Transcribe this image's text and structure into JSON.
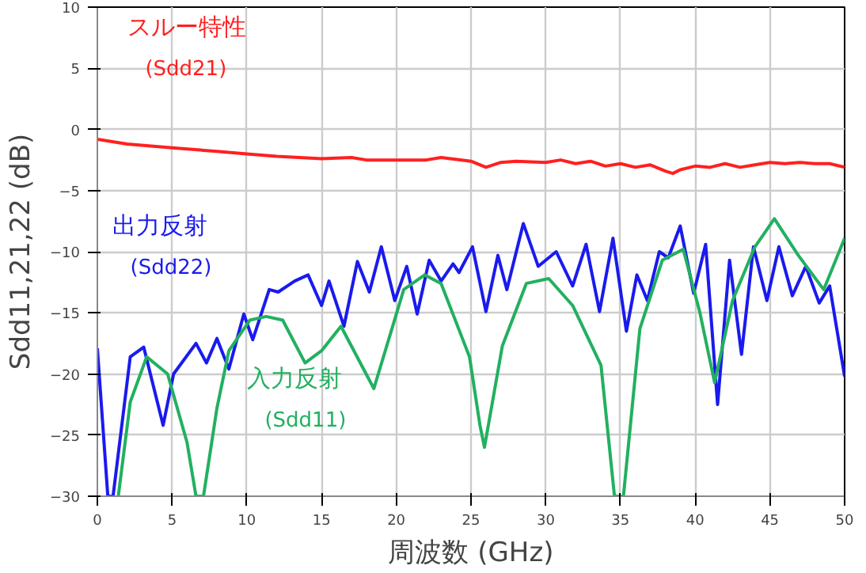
{
  "chart_data": {
    "type": "line",
    "xlabel": "周波数 (GHz)",
    "ylabel": "Sdd11,21,22 (dB)",
    "xlim": [
      0,
      50
    ],
    "ylim": [
      -30,
      10
    ],
    "xticks": [
      0,
      5,
      10,
      15,
      20,
      25,
      30,
      35,
      40,
      45,
      50
    ],
    "yticks": [
      -30,
      -25,
      -20,
      -15,
      -10,
      -5,
      0,
      5,
      10
    ],
    "grid": true,
    "legend": false,
    "marker": "none",
    "line_style": "solid",
    "series": [
      {
        "name": "スルー特性\n(Sdd21)",
        "color": "#ff2020",
        "x": [
          0,
          2,
          5,
          8,
          10,
          12,
          15,
          17,
          18,
          20,
          22,
          23,
          25,
          26,
          27,
          28,
          30,
          31,
          32,
          33,
          34,
          35,
          36,
          37,
          38,
          38.5,
          39,
          40,
          41,
          42,
          43,
          44,
          45,
          46,
          47,
          48,
          49,
          50
        ],
        "values": [
          -0.8,
          -1.2,
          -1.5,
          -1.8,
          -2.0,
          -2.2,
          -2.4,
          -2.3,
          -2.5,
          -2.5,
          -2.5,
          -2.3,
          -2.6,
          -3.1,
          -2.7,
          -2.6,
          -2.7,
          -2.5,
          -2.8,
          -2.6,
          -3.0,
          -2.8,
          -3.1,
          -2.9,
          -3.4,
          -3.6,
          -3.3,
          -3.0,
          -3.1,
          -2.8,
          -3.1,
          -2.9,
          -2.7,
          -2.8,
          -2.7,
          -2.8,
          -2.8,
          -3.1
        ]
      },
      {
        "name": "出力反射\n(Sdd22)",
        "color": "#1a1aee",
        "x": [
          0,
          0.7,
          1.05,
          2.2,
          3.1,
          4.4,
          5.1,
          6.6,
          7.3,
          8.0,
          8.8,
          9.8,
          10.4,
          11.5,
          12.1,
          13.2,
          14.1,
          15.0,
          15.5,
          16.5,
          17.4,
          18.2,
          19.0,
          19.9,
          20.7,
          21.4,
          22.2,
          23.0,
          23.8,
          24.2,
          25.1,
          26.0,
          26.8,
          27.4,
          28.5,
          29.5,
          30.7,
          31.8,
          32.7,
          33.6,
          34.5,
          35.4,
          36.1,
          36.8,
          37.6,
          38.2,
          39.0,
          39.9,
          40.7,
          41.5,
          42.3,
          43.1,
          43.9,
          44.8,
          45.6,
          46.5,
          47.4,
          48.3,
          49.0,
          50.0
        ],
        "values": [
          -17.9,
          -30,
          -30,
          -18.6,
          -17.8,
          -24.2,
          -20,
          -17.5,
          -19.1,
          -17.1,
          -19.6,
          -15.1,
          -17.2,
          -13.1,
          -13.3,
          -12.4,
          -11.9,
          -14.4,
          -12.4,
          -16.1,
          -10.8,
          -13.3,
          -9.6,
          -14.0,
          -11.2,
          -15.1,
          -10.7,
          -12.4,
          -11.0,
          -11.7,
          -9.6,
          -14.9,
          -10.3,
          -13.1,
          -7.7,
          -11.2,
          -10.0,
          -12.8,
          -9.4,
          -14.9,
          -8.9,
          -16.5,
          -11.9,
          -14.0,
          -10.0,
          -10.5,
          -7.9,
          -13.4,
          -9.4,
          -22.5,
          -10.7,
          -18.4,
          -9.6,
          -14.0,
          -9.6,
          -13.6,
          -11.2,
          -14.2,
          -12.8,
          -20.2
        ]
      },
      {
        "name": "入力反射\n(Sdd11)",
        "color": "#22b060",
        "x": [
          1.4,
          2.2,
          3.3,
          4.7,
          6.0,
          6.6,
          7.1,
          8.0,
          8.8,
          10.2,
          11.3,
          12.4,
          13.9,
          15.0,
          16.3,
          18.5,
          20.5,
          21.9,
          23.0,
          24.9,
          25.6,
          25.9,
          27.1,
          28.7,
          30.2,
          31.8,
          33.7,
          34.6,
          35.2,
          36.3,
          37.8,
          39.2,
          40.3,
          41.3,
          42.5,
          44.0,
          45.3,
          46.9,
          48.6,
          50.0
        ],
        "values": [
          -30,
          -22.3,
          -18.6,
          -20,
          -25.6,
          -30,
          -30,
          -22.8,
          -18.1,
          -15.6,
          -15.3,
          -15.6,
          -19.1,
          -18.1,
          -16.1,
          -21.2,
          -13.1,
          -11.9,
          -12.6,
          -18.6,
          -24.2,
          -26.0,
          -17.7,
          -12.6,
          -12.2,
          -14.4,
          -19.3,
          -30,
          -30,
          -16.3,
          -10.7,
          -9.8,
          -14.9,
          -20.7,
          -14.0,
          -9.6,
          -7.3,
          -10.3,
          -13.1,
          -8.9
        ]
      }
    ]
  }
}
